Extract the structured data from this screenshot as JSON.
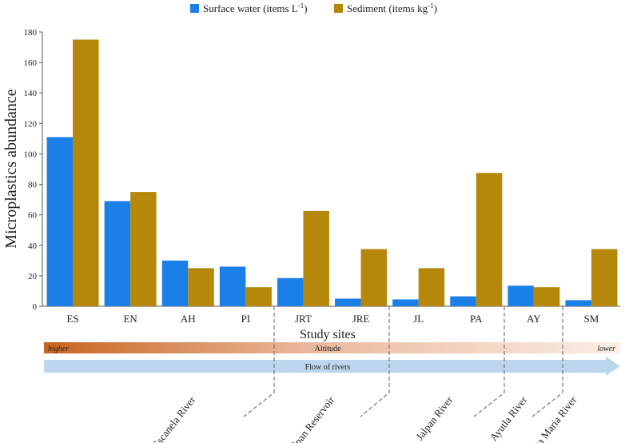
{
  "chart_data": {
    "type": "bar",
    "legend": {
      "position": "top-center",
      "entries": [
        {
          "label_base": "Surface water (items L",
          "label_sup": "-1",
          "label_end": ")",
          "color": "#1a80e8"
        },
        {
          "label_base": "Sediment (items kg",
          "label_sup": "-1",
          "label_end": ")",
          "color": "#b5880c"
        }
      ]
    },
    "xlabel": "Study sites",
    "ylabel": "Microplastics abundance",
    "ylim": [
      0,
      180
    ],
    "yticks": [
      "0",
      "20",
      "40",
      "60",
      "80",
      "100",
      "120",
      "140",
      "160",
      "180"
    ],
    "categories": [
      "ES",
      "EN",
      "AH",
      "PI",
      "JRT",
      "JRE",
      "JL",
      "PA",
      "AY",
      "SM"
    ],
    "series": [
      {
        "name": "Surface water",
        "color": "#1a80e8",
        "values": [
          111,
          69,
          30,
          26,
          18.5,
          5,
          4.5,
          6.5,
          13.5,
          4
        ]
      },
      {
        "name": "Sediment",
        "color": "#b5880c",
        "values": [
          175,
          75,
          25,
          12.5,
          62.5,
          37.5,
          25,
          87.5,
          12.5,
          37.5
        ]
      }
    ],
    "altitude_bar": {
      "label": "Altitude",
      "left_label": "higher",
      "right_label": "lower",
      "color_start": "#c8641e",
      "color_end": "#fbeee6"
    },
    "flow_arrow": {
      "label": "Flow of rivers",
      "color": "#bcd6ee"
    },
    "river_groups": [
      {
        "name": "Escanela River",
        "categories": [
          "ES",
          "EN",
          "AH",
          "PI"
        ]
      },
      {
        "name": "Jalpan Reservoir",
        "categories": [
          "JRT",
          "JRE"
        ]
      },
      {
        "name": "Jalpan River",
        "categories": [
          "JL",
          "PA"
        ]
      },
      {
        "name": "Ayutla River",
        "categories": [
          "AY"
        ]
      },
      {
        "name": "Santa Maria River",
        "categories": [
          "SM"
        ]
      }
    ]
  }
}
